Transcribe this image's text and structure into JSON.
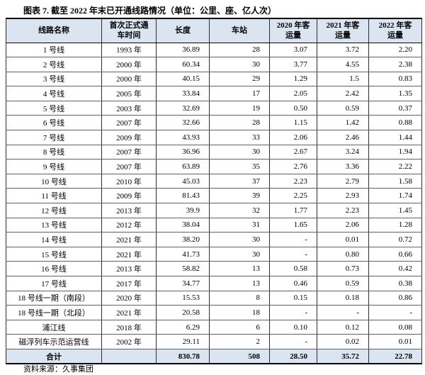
{
  "title": "图表 7. 截至 2022 年末已开通线路情况（单位：公里、座、亿人次）",
  "source_note": "资料来源：久事集团",
  "colors": {
    "header_bg": "#dbe5f1",
    "total_row_bg": "#dbe5f1",
    "border": "#2b2b3a"
  },
  "table": {
    "headers": [
      "线路名称",
      "首次正式通\n车时间",
      "长度",
      "车站",
      "2020 年客\n运量",
      "2021 年客\n运量",
      "2022 年客\n运量"
    ],
    "rows": [
      [
        "1 号线",
        "1993 年",
        "36.89",
        "28",
        "3.07",
        "3.72",
        "2.20"
      ],
      [
        "2 号线",
        "2000 年",
        "60.34",
        "30",
        "3.77",
        "4.55",
        "2.38"
      ],
      [
        "3 号线",
        "2000 年",
        "40.15",
        "29",
        "1.29",
        "1.5",
        "0.83"
      ],
      [
        "4 号线",
        "2005 年",
        "33.84",
        "17",
        "2.05",
        "2.42",
        "1.35"
      ],
      [
        "5 号线",
        "2003 年",
        "32.69",
        "19",
        "0.50",
        "0.59",
        "0.37"
      ],
      [
        "6 号线",
        "2007 年",
        "32.66",
        "28",
        "1.15",
        "1.42",
        "0.88"
      ],
      [
        "7 号线",
        "2009 年",
        "43.93",
        "33",
        "2.06",
        "2.46",
        "1.44"
      ],
      [
        "8 号线",
        "2007 年",
        "36.96",
        "30",
        "2.67",
        "3.24",
        "1.94"
      ],
      [
        "9 号线",
        "2007 年",
        "63.89",
        "35",
        "2.76",
        "3.36",
        "2.22"
      ],
      [
        "10 号线",
        "2010 年",
        "45.03",
        "37",
        "2.23",
        "2.79",
        "1.58"
      ],
      [
        "11 号线",
        "2009 年",
        "81.43",
        "39",
        "2.25",
        "2.93",
        "1.74"
      ],
      [
        "12 号线",
        "2013 年",
        "39.9",
        "32",
        "1.77",
        "2.23",
        "1.45"
      ],
      [
        "13 号线",
        "2012 年",
        "38.04",
        "31",
        "1.65",
        "2.06",
        "1.28"
      ],
      [
        "14 号线",
        "2021 年",
        "38.20",
        "30",
        "-",
        "0.01",
        "0.72"
      ],
      [
        "15 号线",
        "2021 年",
        "41.73",
        "30",
        "-",
        "0.80",
        "0.66"
      ],
      [
        "16 号线",
        "2013 年",
        "58.82",
        "13",
        "0.58",
        "0.73",
        "0.42"
      ],
      [
        "17 号线",
        "2017 年",
        "34.77",
        "13",
        "0.46",
        "0.59",
        "0.38"
      ],
      [
        "18 号线一期（南段）",
        "2020 年",
        "15.53",
        "8",
        "0.15",
        "0.18",
        "0.86"
      ],
      [
        "18 号线一期（北段）",
        "2021 年",
        "20.58",
        "18",
        "-",
        "-",
        "-"
      ],
      [
        "浦江线",
        "2018 年",
        "6.29",
        "6",
        "0.10",
        "0.12",
        "0.08"
      ],
      [
        "磁浮列车示范运营线",
        "2002 年",
        "29.11",
        "2",
        "-",
        "0.02",
        "0.01"
      ]
    ],
    "total_row": [
      "合计",
      "",
      "830.78",
      "508",
      "28.50",
      "35.72",
      "22.78"
    ]
  }
}
